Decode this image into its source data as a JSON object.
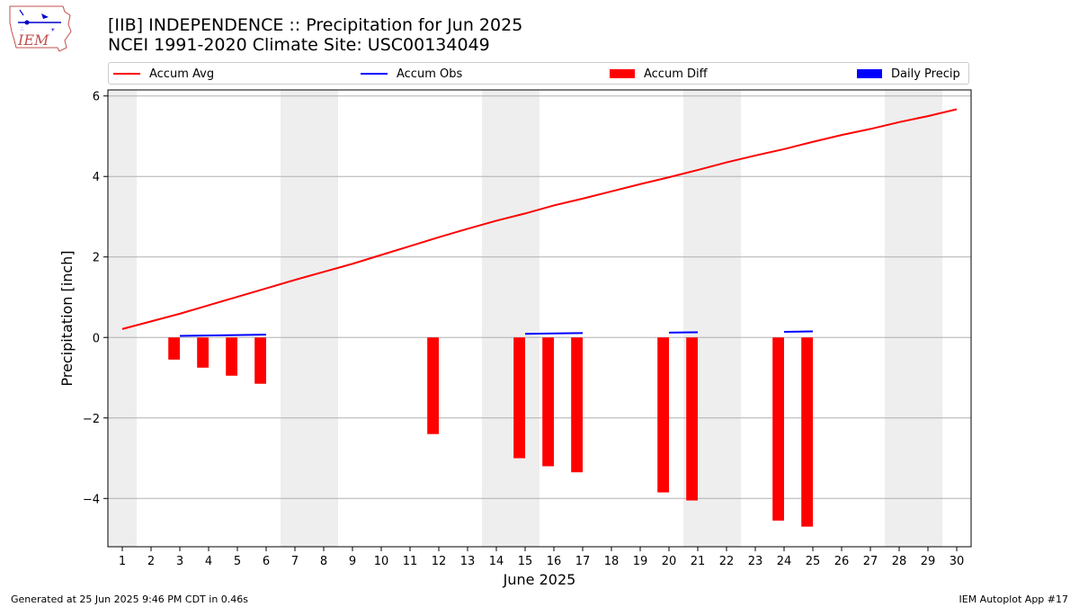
{
  "header": {
    "title_line1": "[IIB] INDEPENDENCE :: Precipitation for Jun 2025",
    "title_line2": "NCEI 1991-2020 Climate Site: USC00134049"
  },
  "logo": {
    "text": "IEM",
    "icon": "iem-iowa-logo-icon"
  },
  "legend": {
    "items": [
      {
        "label": "Accum Avg",
        "color": "#ff0000",
        "kind": "line"
      },
      {
        "label": "Accum Obs",
        "color": "#0000ff",
        "kind": "line"
      },
      {
        "label": "Accum Diff",
        "color": "#ff0000",
        "kind": "bar"
      },
      {
        "label": "Daily Precip",
        "color": "#0000ff",
        "kind": "bar"
      }
    ]
  },
  "footer": {
    "generated": "Generated at 25 Jun 2025 9:46 PM CDT in 0.46s",
    "app": "IEM Autoplot App #17"
  },
  "chart_data": {
    "type": "bar",
    "xlabel": "June 2025",
    "ylabel": "Precipitation [inch]",
    "xlim": [
      0.5,
      30.5
    ],
    "ylim": [
      -5.2,
      6.15
    ],
    "yticks": [
      -4,
      -2,
      0,
      2,
      4,
      6
    ],
    "ytick_labels": [
      "−4",
      "−2",
      "0",
      "2",
      "4",
      "6"
    ],
    "xticks": [
      1,
      2,
      3,
      4,
      5,
      6,
      7,
      8,
      9,
      10,
      11,
      12,
      13,
      14,
      15,
      16,
      17,
      18,
      19,
      20,
      21,
      22,
      23,
      24,
      25,
      26,
      27,
      28,
      29,
      30
    ],
    "grid": "horizontal",
    "weekend_shading": [
      [
        0.5,
        1.5
      ],
      [
        6.5,
        8.5
      ],
      [
        13.5,
        15.5
      ],
      [
        20.5,
        22.5
      ],
      [
        27.5,
        29.5
      ]
    ],
    "accum_avg": {
      "x": [
        1,
        2,
        3,
        4,
        5,
        6,
        7,
        8,
        9,
        10,
        11,
        12,
        13,
        14,
        15,
        16,
        17,
        18,
        19,
        20,
        21,
        22,
        23,
        24,
        25,
        26,
        27,
        28,
        29,
        30
      ],
      "y": [
        0.21,
        0.4,
        0.59,
        0.8,
        1.01,
        1.22,
        1.43,
        1.63,
        1.83,
        2.05,
        2.27,
        2.49,
        2.7,
        2.9,
        3.08,
        3.28,
        3.45,
        3.63,
        3.81,
        3.98,
        4.16,
        4.35,
        4.52,
        4.68,
        4.86,
        5.03,
        5.18,
        5.35,
        5.5,
        5.67
      ]
    },
    "accum_obs": {
      "segments": [
        {
          "x": [
            3,
            6
          ],
          "y": [
            0.04,
            0.07
          ]
        },
        {
          "x": [
            15,
            17
          ],
          "y": [
            0.09,
            0.11
          ]
        },
        {
          "x": [
            20,
            21
          ],
          "y": [
            0.12,
            0.13
          ]
        },
        {
          "x": [
            24,
            25
          ],
          "y": [
            0.14,
            0.15
          ]
        }
      ]
    },
    "accum_diff": {
      "x": [
        3,
        4,
        5,
        6,
        12,
        15,
        16,
        17,
        20,
        21,
        24,
        25
      ],
      "y": [
        -0.55,
        -0.75,
        -0.95,
        -1.15,
        -2.4,
        -3.0,
        -3.2,
        -3.35,
        -3.85,
        -4.05,
        -4.55,
        -4.7
      ]
    },
    "daily_precip": {
      "x": [],
      "y": []
    }
  }
}
